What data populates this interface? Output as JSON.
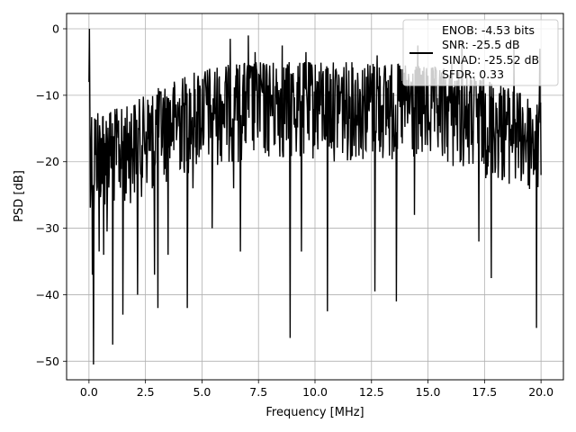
{
  "chart_data": {
    "type": "line",
    "title": "",
    "xlabel": "Frequency [MHz]",
    "ylabel": "PSD [dB]",
    "xlim": [
      -0.99,
      20.99
    ],
    "ylim": [
      -52.8,
      2.3
    ],
    "xticks": [
      0.0,
      2.5,
      5.0,
      7.5,
      10.0,
      12.5,
      15.0,
      17.5,
      20.0
    ],
    "xtick_labels": [
      "0.0",
      "2.5",
      "5.0",
      "7.5",
      "10.0",
      "12.5",
      "15.0",
      "17.5",
      "20.0"
    ],
    "yticks": [
      0,
      -10,
      -20,
      -30,
      -40,
      -50
    ],
    "ytick_labels": [
      "0",
      "−10",
      "−20",
      "−30",
      "−40",
      "−50"
    ],
    "grid": true,
    "legend": {
      "placement": "top-right",
      "entries": [
        "ENOB: -4.53 bits",
        "SNR: -25.5 dB",
        "SINAD: -25.52 dB",
        "SFDR: 0.33"
      ]
    },
    "series": [
      {
        "color": "#000000",
        "noise": {
          "samples": 1024,
          "ceiling_points": [
            [
              0.0,
              -12
            ],
            [
              1.5,
              -12
            ],
            [
              3.0,
              -9
            ],
            [
              5.0,
              -6
            ],
            [
              7.0,
              -5
            ],
            [
              12.5,
              -5
            ],
            [
              16.0,
              -6
            ],
            [
              18.0,
              -8
            ],
            [
              20.0,
              -11
            ]
          ],
          "typical_depth_db": 10
        },
        "x": [
          0.0,
          0.02,
          0.04,
          0.08,
          0.1,
          0.15,
          0.2,
          0.22,
          0.45,
          0.65,
          0.8,
          1.05,
          1.5,
          2.15,
          2.8,
          2.9,
          3.05,
          3.5,
          4.35,
          4.45,
          4.6,
          5.45,
          6.25,
          6.4,
          6.5,
          6.7,
          7.05,
          7.35,
          8.55,
          8.9,
          9.4,
          9.6,
          10.55,
          10.8,
          12.65,
          12.75,
          13.6,
          14.4,
          14.55,
          16.05,
          16.5,
          17.25,
          17.8,
          18.8,
          19.8,
          19.95,
          20.0
        ],
        "y": [
          -8,
          0,
          -12,
          -24,
          -17,
          -37,
          -50.5,
          -28,
          -33.5,
          -34,
          -30.5,
          -47.5,
          -43,
          -40,
          -24,
          -37,
          -42,
          -34,
          -42,
          -9,
          -24,
          -30,
          -1.5,
          -24,
          -7,
          -33.5,
          -1,
          -3.5,
          -2.5,
          -46.5,
          -33.5,
          -3.5,
          -42.5,
          -7,
          -39.5,
          -4,
          -41,
          -28,
          -2.5,
          -5,
          -2,
          -32,
          -37.5,
          -3,
          -45,
          -3,
          -22
        ]
      }
    ]
  }
}
